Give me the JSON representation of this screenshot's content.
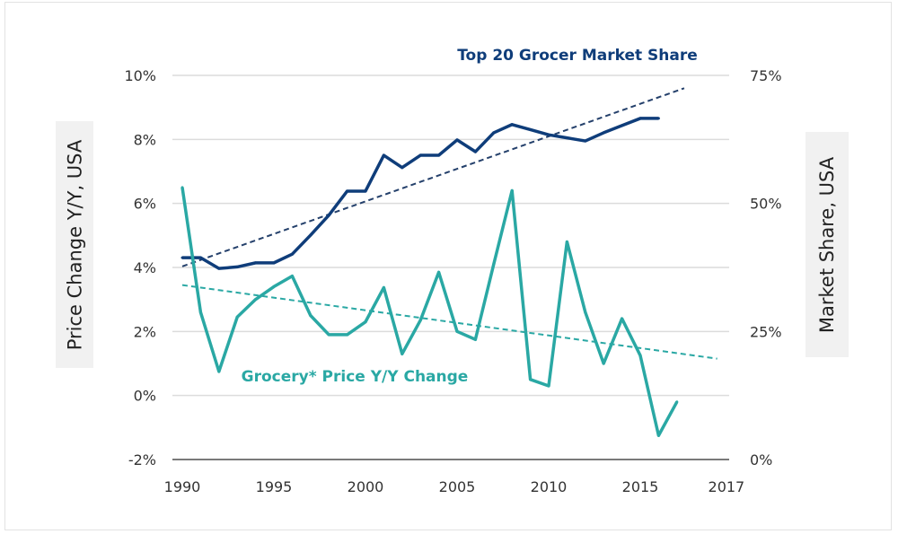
{
  "chart_data": {
    "type": "line",
    "x": [
      1990,
      1991,
      1992,
      1993,
      1994,
      1995,
      1996,
      1997,
      1998,
      1999,
      2000,
      2001,
      2002,
      2003,
      2004,
      2005,
      2006,
      2007,
      2008,
      2009,
      2010,
      2011,
      2012,
      2013,
      2014,
      2015,
      2016,
      2017
    ],
    "xlim": [
      1989.2,
      2019.7
    ],
    "x_tick_labels": [
      "1990",
      "1995",
      "2000",
      "2005",
      "2010",
      "2015",
      "2017"
    ],
    "y_left": {
      "label": "Price Change Y/Y, USA",
      "ylim": [
        -2,
        10
      ],
      "ticks": [
        "-2%",
        "0%",
        "2%",
        "4%",
        "6%",
        "8%",
        "10%"
      ]
    },
    "y_right": {
      "label": "Market Share, USA",
      "ylim": [
        0,
        75
      ],
      "ticks": [
        "0%",
        "25%",
        "50%",
        "75%"
      ]
    },
    "grid": true,
    "series": [
      {
        "name": "Top 20 Grocer Market Share",
        "axis": "right",
        "color": "#0f3d7a",
        "x": [
          1990,
          1991,
          1992,
          1993,
          1994,
          1995,
          1996,
          1997,
          1998,
          1999,
          2000,
          2001,
          2002,
          2003,
          2004,
          2005,
          2006,
          2007,
          2008,
          2009,
          2010,
          2011,
          2012,
          2013,
          2014,
          2015,
          2016
        ],
        "values": [
          39.4,
          39.4,
          37.3,
          37.6,
          38.4,
          38.4,
          40.1,
          43.8,
          47.7,
          52.4,
          52.4,
          59.4,
          57.0,
          59.4,
          59.4,
          62.4,
          60.1,
          63.8,
          65.4,
          64.4,
          63.4,
          62.8,
          62.2,
          63.8,
          65.2,
          66.6,
          66.6
        ],
        "trend": {
          "x": [
            1990,
            2017.4
          ],
          "values": [
            37.7,
            72.5
          ],
          "color": "#24406b"
        }
      },
      {
        "name": "Grocery* Price Y/Y Change",
        "axis": "left",
        "color": "#2aa8a4",
        "x": [
          1990,
          1991,
          1992,
          1993,
          1994,
          1995,
          1996,
          1997,
          1998,
          1999,
          2000,
          2001,
          2002,
          2003,
          2004,
          2005,
          2006,
          2007,
          2008,
          2009,
          2010,
          2011,
          2012,
          2013,
          2014,
          2015,
          2016,
          2017
        ],
        "values": [
          6.5,
          2.6,
          0.75,
          2.45,
          3.0,
          3.4,
          3.73,
          2.5,
          1.9,
          1.9,
          2.3,
          3.37,
          1.3,
          2.35,
          3.85,
          2.0,
          1.75,
          4.1,
          6.4,
          0.5,
          0.3,
          4.8,
          2.6,
          1.0,
          2.4,
          1.25,
          -1.25,
          -0.2
        ],
        "trend": {
          "x": [
            1990,
            2019.2
          ],
          "values": [
            3.45,
            1.15
          ],
          "color": "#2aa8a4"
        }
      }
    ]
  }
}
